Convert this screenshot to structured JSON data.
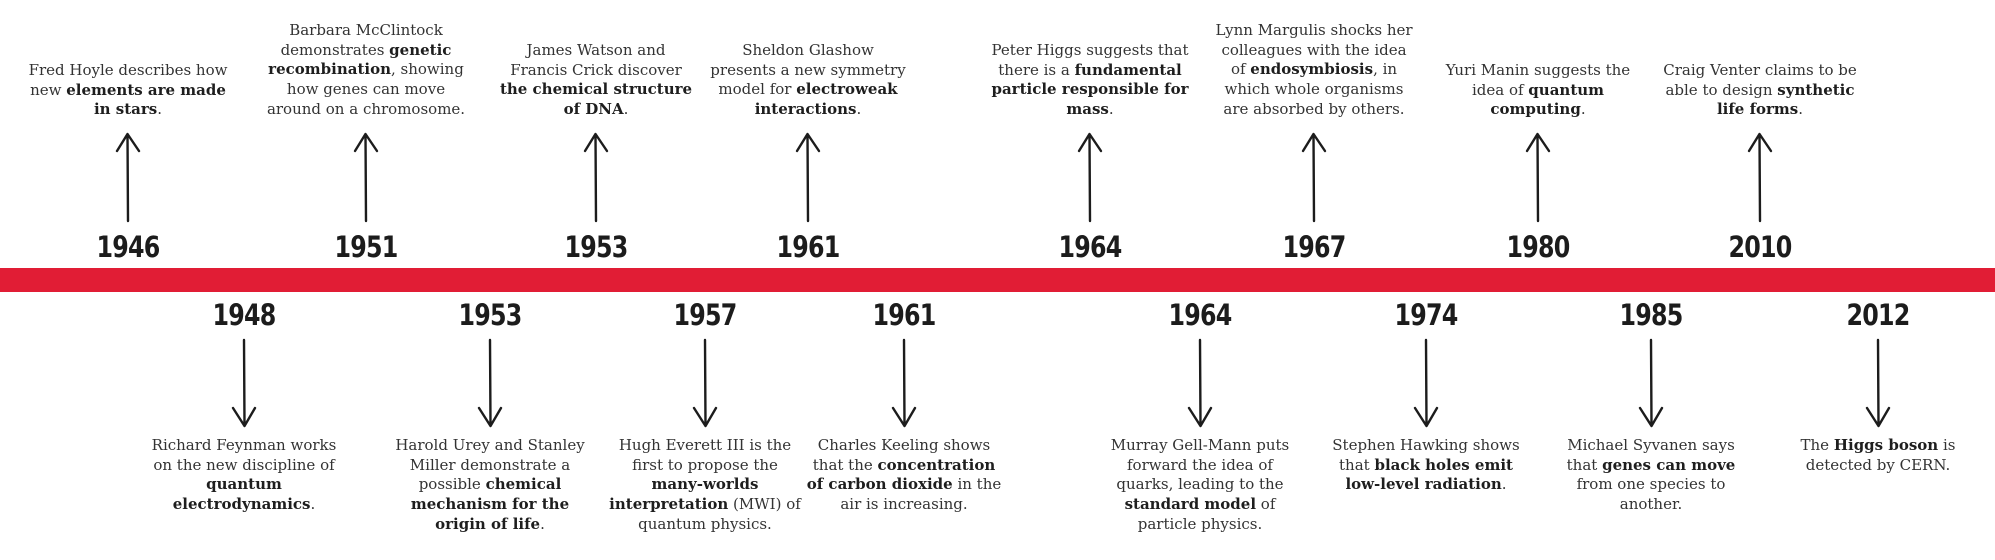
{
  "colors": {
    "bar": "#e11d35",
    "text": "#2b2b2b",
    "arrow": "#1c1c1c"
  },
  "events_above": [
    {
      "year": "1946",
      "segments": [
        {
          "t": "Fred Hoyle describes how new "
        },
        {
          "t": "elements are made in stars",
          "b": true
        },
        {
          "t": "."
        }
      ]
    },
    {
      "year": "1951",
      "segments": [
        {
          "t": "Barbara McClintock demonstrates "
        },
        {
          "t": "genetic recombination",
          "b": true
        },
        {
          "t": ", showing how genes can move around on a chromosome."
        }
      ]
    },
    {
      "year": "1953",
      "segments": [
        {
          "t": "James Watson and Francis Crick discover "
        },
        {
          "t": "the chemical structure of DNA",
          "b": true
        },
        {
          "t": "."
        }
      ]
    },
    {
      "year": "1961",
      "segments": [
        {
          "t": "Sheldon Glashow presents a new symmetry model for "
        },
        {
          "t": "electroweak interactions",
          "b": true
        },
        {
          "t": "."
        }
      ]
    },
    {
      "year": "1964",
      "segments": [
        {
          "t": "Peter Higgs suggests that there is a "
        },
        {
          "t": "fundamental particle responsible for mass",
          "b": true
        },
        {
          "t": "."
        }
      ]
    },
    {
      "year": "1967",
      "segments": [
        {
          "t": "Lynn Margulis shocks her colleagues with the idea of "
        },
        {
          "t": "endosymbiosis",
          "b": true
        },
        {
          "t": ", in which whole organisms are absorbed by others."
        }
      ]
    },
    {
      "year": "1980",
      "segments": [
        {
          "t": "Yuri Manin suggests the idea of "
        },
        {
          "t": "quantum computing",
          "b": true
        },
        {
          "t": "."
        }
      ]
    },
    {
      "year": "2010",
      "segments": [
        {
          "t": "Craig Venter claims to be able to design "
        },
        {
          "t": "synthetic life forms",
          "b": true
        },
        {
          "t": "."
        }
      ]
    }
  ],
  "events_below": [
    {
      "year": "1948",
      "segments": [
        {
          "t": "Richard Feynman works on the new discipline of "
        },
        {
          "t": "quantum electrodynamics",
          "b": true
        },
        {
          "t": "."
        }
      ]
    },
    {
      "year": "1953",
      "segments": [
        {
          "t": "Harold Urey and Stanley Miller demonstrate a possible "
        },
        {
          "t": "chemical mechanism for the origin of life",
          "b": true
        },
        {
          "t": "."
        }
      ]
    },
    {
      "year": "1957",
      "segments": [
        {
          "t": "Hugh Everett III is the first to propose the "
        },
        {
          "t": "many-worlds interpretation",
          "b": true
        },
        {
          "t": " (MWI) of quantum physics."
        }
      ]
    },
    {
      "year": "1961",
      "segments": [
        {
          "t": "Charles Keeling shows that the "
        },
        {
          "t": "concentration of carbon dioxide",
          "b": true
        },
        {
          "t": " in the air is increasing."
        }
      ]
    },
    {
      "year": "1964",
      "segments": [
        {
          "t": "Murray Gell-Mann puts forward the idea of quarks, leading to the "
        },
        {
          "t": "standard model",
          "b": true
        },
        {
          "t": " of particle physics."
        }
      ]
    },
    {
      "year": "1974",
      "segments": [
        {
          "t": "Stephen Hawking shows that "
        },
        {
          "t": "black holes emit low-level radiation",
          "b": true
        },
        {
          "t": "."
        }
      ]
    },
    {
      "year": "1985",
      "segments": [
        {
          "t": "Michael Syvanen says that "
        },
        {
          "t": "genes can move",
          "b": true
        },
        {
          "t": " from one species to another."
        }
      ]
    },
    {
      "year": "2012",
      "segments": [
        {
          "t": "The "
        },
        {
          "t": "Higgs boson",
          "b": true
        },
        {
          "t": " is detected by CERN."
        }
      ]
    }
  ]
}
